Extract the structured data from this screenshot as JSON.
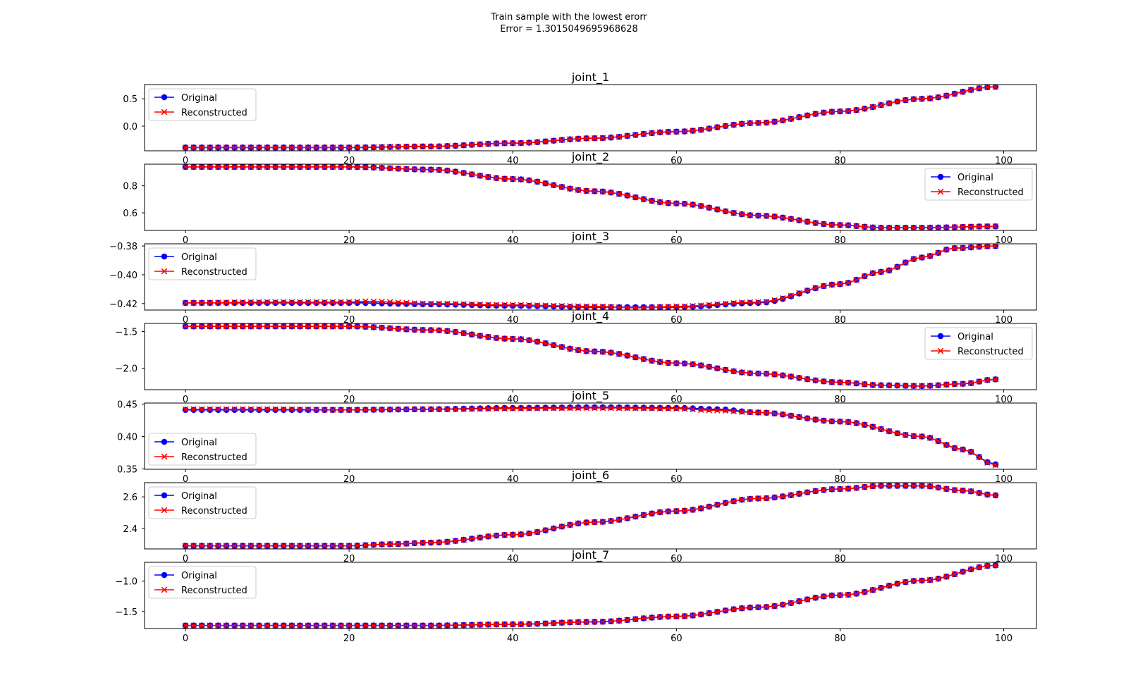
{
  "suptitle": "Train sample with the lowest erorr",
  "subtitle": "Error = 1.3015049695968628",
  "colors": {
    "original": "#0000ff",
    "reconstructed": "#ff0000"
  },
  "chart_data": [
    {
      "type": "line",
      "title": "joint_1",
      "x_range": [
        0,
        99
      ],
      "xlim": [
        -5,
        104
      ],
      "xticks": [
        "0",
        "20",
        "40",
        "60",
        "80",
        "100"
      ],
      "ylim": [
        -0.45,
        0.76
      ],
      "yticks": [
        "0.0",
        "0.5"
      ],
      "legend": "upper left",
      "series": [
        {
          "name": "Original",
          "marker": "circle",
          "anchors_x": [
            0,
            10,
            20,
            30,
            40,
            50,
            60,
            70,
            80,
            90,
            99
          ],
          "anchors_y": [
            -0.39,
            -0.39,
            -0.39,
            -0.37,
            -0.31,
            -0.22,
            -0.1,
            0.06,
            0.27,
            0.5,
            0.72
          ]
        },
        {
          "name": "Reconstructed",
          "marker": "x",
          "anchors_x": [
            0,
            10,
            20,
            30,
            40,
            50,
            60,
            70,
            80,
            90,
            99
          ],
          "anchors_y": [
            -0.39,
            -0.39,
            -0.39,
            -0.37,
            -0.31,
            -0.22,
            -0.1,
            0.06,
            0.27,
            0.5,
            0.72
          ]
        }
      ]
    },
    {
      "type": "line",
      "title": "joint_2",
      "x_range": [
        0,
        99
      ],
      "xlim": [
        -5,
        104
      ],
      "xticks": [
        "0",
        "20",
        "40",
        "60",
        "80",
        "100"
      ],
      "ylim": [
        0.47,
        0.96
      ],
      "yticks": [
        "0.6",
        "0.8"
      ],
      "legend": "upper right",
      "series": [
        {
          "name": "Original",
          "marker": "circle",
          "anchors_x": [
            0,
            10,
            20,
            30,
            40,
            50,
            60,
            70,
            80,
            85,
            90,
            99
          ],
          "anchors_y": [
            0.94,
            0.94,
            0.94,
            0.92,
            0.85,
            0.76,
            0.67,
            0.58,
            0.51,
            0.49,
            0.49,
            0.5
          ]
        },
        {
          "name": "Reconstructed",
          "marker": "x",
          "anchors_x": [
            0,
            10,
            20,
            30,
            40,
            50,
            60,
            70,
            80,
            85,
            90,
            99
          ],
          "anchors_y": [
            0.94,
            0.94,
            0.94,
            0.92,
            0.85,
            0.76,
            0.67,
            0.58,
            0.51,
            0.49,
            0.49,
            0.5
          ]
        }
      ]
    },
    {
      "type": "line",
      "title": "joint_3",
      "x_range": [
        0,
        99
      ],
      "xlim": [
        -5,
        104
      ],
      "xticks": [
        "0",
        "20",
        "40",
        "60",
        "80",
        "100"
      ],
      "ylim": [
        -0.4245,
        -0.3785
      ],
      "yticks": [
        "−0.42",
        "−0.40",
        "−0.38"
      ],
      "legend": "upper left",
      "series": [
        {
          "name": "Original",
          "marker": "circle",
          "anchors_x": [
            0,
            10,
            20,
            30,
            40,
            50,
            60,
            70,
            80,
            85,
            90,
            94,
            99
          ],
          "anchors_y": [
            -0.4195,
            -0.4195,
            -0.4195,
            -0.4205,
            -0.4215,
            -0.4225,
            -0.4225,
            -0.4195,
            -0.4065,
            -0.398,
            -0.388,
            -0.3815,
            -0.38
          ]
        },
        {
          "name": "Reconstructed",
          "marker": "x",
          "anchors_x": [
            0,
            10,
            20,
            22,
            30,
            40,
            50,
            55,
            60,
            70,
            80,
            85,
            90,
            94,
            99
          ],
          "anchors_y": [
            -0.4195,
            -0.419,
            -0.419,
            -0.4185,
            -0.42,
            -0.421,
            -0.422,
            -0.423,
            -0.422,
            -0.419,
            -0.4065,
            -0.398,
            -0.388,
            -0.3815,
            -0.38
          ]
        }
      ]
    },
    {
      "type": "line",
      "title": "joint_4",
      "x_range": [
        0,
        99
      ],
      "xlim": [
        -5,
        104
      ],
      "xticks": [
        "0",
        "20",
        "40",
        "60",
        "80",
        "100"
      ],
      "ylim": [
        -2.29,
        -1.39
      ],
      "yticks": [
        "−2.0",
        "−1.5"
      ],
      "legend": "upper right",
      "series": [
        {
          "name": "Original",
          "marker": "circle",
          "anchors_x": [
            0,
            10,
            20,
            30,
            40,
            50,
            60,
            70,
            80,
            85,
            90,
            95,
            99
          ],
          "anchors_y": [
            -1.43,
            -1.43,
            -1.43,
            -1.48,
            -1.6,
            -1.77,
            -1.93,
            -2.07,
            -2.19,
            -2.23,
            -2.24,
            -2.21,
            -2.15
          ]
        },
        {
          "name": "Reconstructed",
          "marker": "x",
          "anchors_x": [
            0,
            10,
            20,
            30,
            40,
            50,
            60,
            70,
            80,
            85,
            90,
            95,
            99
          ],
          "anchors_y": [
            -1.43,
            -1.43,
            -1.43,
            -1.48,
            -1.6,
            -1.77,
            -1.93,
            -2.07,
            -2.19,
            -2.23,
            -2.24,
            -2.21,
            -2.15
          ]
        }
      ]
    },
    {
      "type": "line",
      "title": "joint_5",
      "x_range": [
        0,
        99
      ],
      "xlim": [
        -5,
        104
      ],
      "xticks": [
        "0",
        "20",
        "40",
        "60",
        "80",
        "100"
      ],
      "ylim": [
        0.3495,
        0.4515
      ],
      "yticks": [
        "0.35",
        "0.40",
        "0.45"
      ],
      "legend": "lower left",
      "series": [
        {
          "name": "Original",
          "marker": "circle",
          "anchors_x": [
            0,
            10,
            20,
            30,
            40,
            50,
            60,
            65,
            70,
            80,
            90,
            95,
            99
          ],
          "anchors_y": [
            0.441,
            0.441,
            0.441,
            0.442,
            0.444,
            0.445,
            0.444,
            0.442,
            0.437,
            0.423,
            0.4,
            0.38,
            0.357
          ]
        },
        {
          "name": "Reconstructed",
          "marker": "x",
          "anchors_x": [
            0,
            10,
            20,
            30,
            40,
            50,
            60,
            65,
            70,
            80,
            90,
            95,
            99
          ],
          "anchors_y": [
            0.442,
            0.442,
            0.441,
            0.442,
            0.443,
            0.444,
            0.443,
            0.44,
            0.437,
            0.423,
            0.4,
            0.38,
            0.356
          ]
        }
      ]
    },
    {
      "type": "line",
      "title": "joint_6",
      "x_range": [
        0,
        99
      ],
      "xlim": [
        -5,
        104
      ],
      "xticks": [
        "0",
        "20",
        "40",
        "60",
        "80",
        "100"
      ],
      "ylim": [
        2.27,
        2.69
      ],
      "yticks": [
        "2.4",
        "2.6"
      ],
      "legend": "upper left",
      "series": [
        {
          "name": "Original",
          "marker": "circle",
          "anchors_x": [
            0,
            10,
            20,
            25,
            30,
            40,
            50,
            60,
            70,
            80,
            85,
            90,
            95,
            99
          ],
          "anchors_y": [
            2.29,
            2.29,
            2.29,
            2.3,
            2.31,
            2.36,
            2.44,
            2.51,
            2.59,
            2.65,
            2.67,
            2.67,
            2.64,
            2.61
          ]
        },
        {
          "name": "Reconstructed",
          "marker": "x",
          "anchors_x": [
            0,
            10,
            20,
            25,
            30,
            40,
            50,
            60,
            70,
            80,
            85,
            90,
            95,
            99
          ],
          "anchors_y": [
            2.29,
            2.29,
            2.29,
            2.3,
            2.31,
            2.36,
            2.44,
            2.51,
            2.59,
            2.65,
            2.67,
            2.67,
            2.64,
            2.61
          ]
        }
      ]
    },
    {
      "type": "line",
      "title": "joint_7",
      "x_range": [
        0,
        99
      ],
      "xlim": [
        -5,
        104
      ],
      "xticks": [
        "0",
        "20",
        "40",
        "60",
        "80",
        "100"
      ],
      "ylim": [
        -1.78,
        -0.69
      ],
      "yticks": [
        "−1.5",
        "−1.0"
      ],
      "legend": "upper left",
      "series": [
        {
          "name": "Original",
          "marker": "circle",
          "anchors_x": [
            0,
            10,
            20,
            30,
            40,
            50,
            60,
            70,
            80,
            90,
            99
          ],
          "anchors_y": [
            -1.73,
            -1.73,
            -1.73,
            -1.73,
            -1.71,
            -1.67,
            -1.58,
            -1.43,
            -1.23,
            -0.99,
            -0.74
          ]
        },
        {
          "name": "Reconstructed",
          "marker": "x",
          "anchors_x": [
            0,
            10,
            20,
            30,
            40,
            50,
            60,
            70,
            80,
            90,
            99
          ],
          "anchors_y": [
            -1.73,
            -1.73,
            -1.73,
            -1.73,
            -1.71,
            -1.67,
            -1.58,
            -1.43,
            -1.23,
            -0.99,
            -0.74
          ]
        }
      ]
    }
  ]
}
